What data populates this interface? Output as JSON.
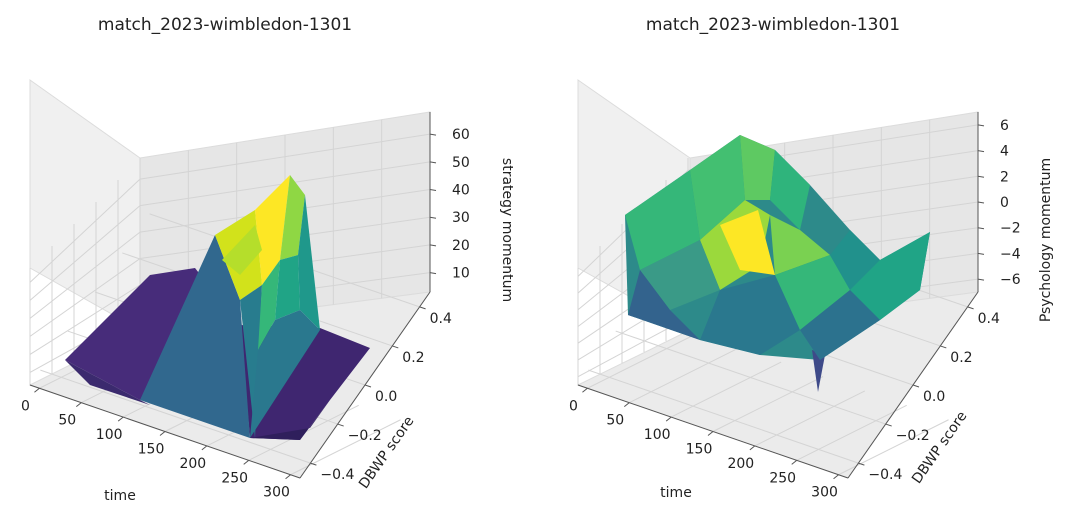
{
  "chart_data": [
    {
      "type": "surface3d",
      "title": "match_2023-wimbledon-1301",
      "xlabel": "time",
      "ylabel": "DBWP score",
      "zlabel": "strategy momentum",
      "xticks": [
        "0",
        "50",
        "100",
        "150",
        "200",
        "250",
        "300"
      ],
      "yticks": [
        "−0.4",
        "−0.2",
        "0.0",
        "0.2",
        "0.4"
      ],
      "zticks": [
        "10",
        "20",
        "30",
        "40",
        "50",
        "60"
      ],
      "xlim": [
        0,
        300
      ],
      "ylim": [
        -0.4,
        0.4
      ],
      "zlim": [
        3,
        68
      ],
      "colormap": "viridis",
      "grid": true
    },
    {
      "type": "surface3d",
      "title": "match_2023-wimbledon-1301",
      "xlabel": "time",
      "ylabel": "DBWP score",
      "zlabel": "Psychology momentum",
      "xticks": [
        "0",
        "50",
        "100",
        "150",
        "200",
        "250",
        "300"
      ],
      "yticks": [
        "−0.4",
        "−0.2",
        "0.0",
        "0.2",
        "0.4"
      ],
      "zticks": [
        "−6",
        "−4",
        "−2",
        "0",
        "2",
        "4",
        "6"
      ],
      "xlim": [
        0,
        300
      ],
      "ylim": [
        -0.4,
        0.4
      ],
      "zlim": [
        -7,
        7
      ],
      "colormap": "viridis",
      "grid": true
    }
  ]
}
